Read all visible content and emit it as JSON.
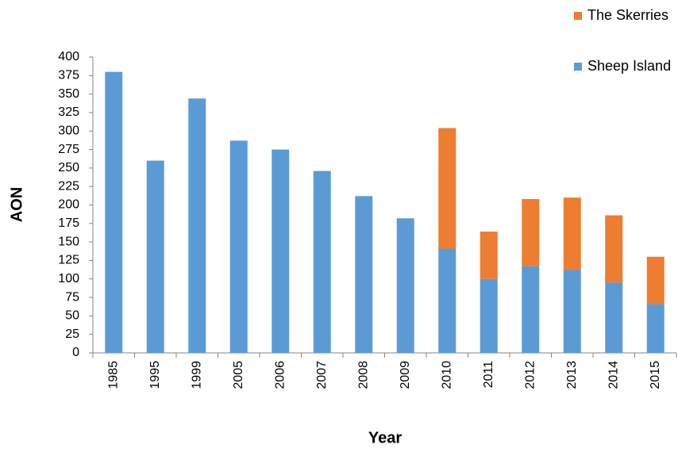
{
  "chart_data": {
    "type": "stacked_bar",
    "x_label": "Year",
    "y_label": "AON",
    "categories": [
      "1985",
      "1995",
      "1999",
      "2005",
      "2006",
      "2007",
      "2008",
      "2009",
      "2010",
      "2011",
      "2012",
      "2013",
      "2014",
      "2015"
    ],
    "series": [
      {
        "name": "Sheep Island",
        "color": "#5b9bd5",
        "values": [
          380,
          260,
          344,
          287,
          275,
          246,
          212,
          182,
          141,
          100,
          117,
          112,
          95,
          66
        ]
      },
      {
        "name": "The Skerries",
        "color": "#ed7d31",
        "values": [
          null,
          null,
          null,
          null,
          null,
          null,
          null,
          null,
          163,
          64,
          91,
          98,
          91,
          64
        ]
      }
    ],
    "ylim": [
      0,
      400
    ],
    "yticks": [
      0,
      25,
      50,
      75,
      100,
      125,
      150,
      175,
      200,
      225,
      250,
      275,
      300,
      325,
      350,
      375,
      400
    ],
    "legend": "top-right"
  }
}
